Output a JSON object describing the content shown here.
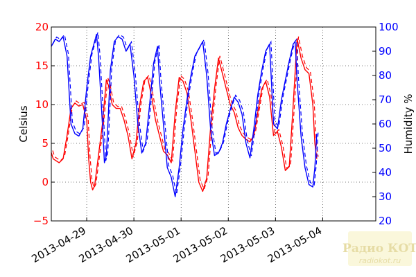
{
  "chart_data": {
    "type": "line",
    "x_start": "2013-04-28 06:00",
    "x_end": "2013-05-05 03:00",
    "xticks": [
      "2013-04-29",
      "2013-04-30",
      "2013-05-01",
      "2013-05-02",
      "2013-05-03",
      "2013-05-04"
    ],
    "ylabel_left": "Celsius",
    "ylabel_right": "Humidity %",
    "ylim_left": [
      -5,
      20
    ],
    "ylim_right": [
      20,
      100
    ],
    "yticks_left": [
      "−5",
      "0",
      "5",
      "10",
      "15",
      "20"
    ],
    "yticks_right": [
      "20",
      "30",
      "40",
      "50",
      "60",
      "70",
      "80",
      "90",
      "100"
    ],
    "grid": true,
    "series": [
      {
        "axis": "left",
        "color": "#ff0000",
        "points": [
          [
            "2013-04-28 06:00",
            3.8
          ],
          [
            "2013-04-28 07:00",
            3.0
          ],
          [
            "2013-04-28 10:00",
            2.5
          ],
          [
            "2013-04-28 12:00",
            3.0
          ],
          [
            "2013-04-28 14:00",
            6.0
          ],
          [
            "2013-04-28 16:00",
            9.5
          ],
          [
            "2013-04-28 18:00",
            10.2
          ],
          [
            "2013-04-28 20:00",
            9.8
          ],
          [
            "2013-04-28 22:00",
            10.0
          ],
          [
            "2013-04-29 00:00",
            8.0
          ],
          [
            "2013-04-29 01:00",
            3.0
          ],
          [
            "2013-04-29 02:00",
            0.0
          ],
          [
            "2013-04-29 03:00",
            -1.0
          ],
          [
            "2013-04-29 04:00",
            -0.5
          ],
          [
            "2013-04-29 06:00",
            3.5
          ],
          [
            "2013-04-29 08:00",
            7.5
          ],
          [
            "2013-04-29 10:00",
            13.2
          ],
          [
            "2013-04-29 11:00",
            12.5
          ],
          [
            "2013-04-29 13:00",
            10.0
          ],
          [
            "2013-04-29 15:00",
            9.5
          ],
          [
            "2013-04-29 17:00",
            9.5
          ],
          [
            "2013-04-29 19:00",
            8.0
          ],
          [
            "2013-04-29 21:00",
            6.0
          ],
          [
            "2013-04-29 23:00",
            3.0
          ],
          [
            "2013-04-30 01:00",
            5.0
          ],
          [
            "2013-04-30 03:00",
            10.0
          ],
          [
            "2013-04-30 05:00",
            13.0
          ],
          [
            "2013-04-30 07:00",
            13.5
          ],
          [
            "2013-04-30 09:00",
            11.0
          ],
          [
            "2013-04-30 11:00",
            8.0
          ],
          [
            "2013-04-30 13:00",
            6.0
          ],
          [
            "2013-04-30 15:00",
            4.0
          ],
          [
            "2013-04-30 17:00",
            3.5
          ],
          [
            "2013-04-30 19:00",
            2.5
          ],
          [
            "2013-04-30 21:00",
            9.0
          ],
          [
            "2013-04-30 23:00",
            13.5
          ],
          [
            "2013-05-01 01:00",
            13.0
          ],
          [
            "2013-05-01 03:00",
            11.5
          ],
          [
            "2013-05-01 05:00",
            8.0
          ],
          [
            "2013-05-01 07:00",
            4.0
          ],
          [
            "2013-05-01 09:00",
            0.0
          ],
          [
            "2013-05-01 11:00",
            -1.2
          ],
          [
            "2013-05-01 13:00",
            0.5
          ],
          [
            "2013-05-01 15:00",
            7.0
          ],
          [
            "2013-05-01 17:00",
            12.0
          ],
          [
            "2013-05-01 19:00",
            16.0
          ],
          [
            "2013-05-01 21:00",
            14.0
          ],
          [
            "2013-05-01 23:00",
            12.0
          ],
          [
            "2013-05-02 01:00",
            10.0
          ],
          [
            "2013-05-02 03:00",
            9.0
          ],
          [
            "2013-05-02 05:00",
            7.0
          ],
          [
            "2013-05-02 07:00",
            6.0
          ],
          [
            "2013-05-02 09:00",
            5.5
          ],
          [
            "2013-05-02 11:00",
            5.2
          ],
          [
            "2013-05-02 13:00",
            6.0
          ],
          [
            "2013-05-02 15:00",
            9.0
          ],
          [
            "2013-05-02 17:00",
            12.0
          ],
          [
            "2013-05-02 19:00",
            13.0
          ],
          [
            "2013-05-02 21:00",
            11.0
          ],
          [
            "2013-05-02 23:00",
            6.0
          ],
          [
            "2013-05-03 01:00",
            6.5
          ],
          [
            "2013-05-03 03:00",
            4.5
          ],
          [
            "2013-05-03 05:00",
            1.5
          ],
          [
            "2013-05-03 07:00",
            2.0
          ],
          [
            "2013-05-03 09:00",
            10.0
          ],
          [
            "2013-05-03 11:00",
            18.5
          ],
          [
            "2013-05-03 13:00",
            16.0
          ],
          [
            "2013-05-03 15:00",
            14.5
          ],
          [
            "2013-05-03 17:00",
            14.0
          ],
          [
            "2013-05-03 19:00",
            10.0
          ],
          [
            "2013-05-03 20:00",
            5.0
          ],
          [
            "2013-05-03 21:00",
            3.0
          ]
        ]
      },
      {
        "axis": "right",
        "color": "#0000ff",
        "points": [
          [
            "2013-04-28 06:00",
            92.0
          ],
          [
            "2013-04-28 08:00",
            95.0
          ],
          [
            "2013-04-28 10:00",
            94.0
          ],
          [
            "2013-04-28 12:00",
            96.0
          ],
          [
            "2013-04-28 14:00",
            88.0
          ],
          [
            "2013-04-28 16:00",
            60.0
          ],
          [
            "2013-04-28 18:00",
            56.0
          ],
          [
            "2013-04-28 20:00",
            55.0
          ],
          [
            "2013-04-28 22:00",
            58.0
          ],
          [
            "2013-04-29 00:00",
            75.0
          ],
          [
            "2013-04-29 02:00",
            88.0
          ],
          [
            "2013-04-29 04:00",
            94.0
          ],
          [
            "2013-04-29 05:00",
            97.0
          ],
          [
            "2013-04-29 06:00",
            88.0
          ],
          [
            "2013-04-29 08:00",
            60.0
          ],
          [
            "2013-04-29 09:00",
            44.0
          ],
          [
            "2013-04-29 10:00",
            47.0
          ],
          [
            "2013-04-29 11:00",
            64.0
          ],
          [
            "2013-04-29 12:00",
            82.0
          ],
          [
            "2013-04-29 14:00",
            94.0
          ],
          [
            "2013-04-29 16:00",
            96.0
          ],
          [
            "2013-04-29 18:00",
            95.0
          ],
          [
            "2013-04-29 20:00",
            90.0
          ],
          [
            "2013-04-29 22:00",
            93.0
          ],
          [
            "2013-04-30 00:00",
            80.0
          ],
          [
            "2013-04-30 02:00",
            60.0
          ],
          [
            "2013-04-30 04:00",
            48.0
          ],
          [
            "2013-04-30 06:00",
            52.0
          ],
          [
            "2013-04-30 08:00",
            68.0
          ],
          [
            "2013-04-30 10:00",
            85.0
          ],
          [
            "2013-04-30 12:00",
            92.0
          ],
          [
            "2013-04-30 13:00",
            78.0
          ],
          [
            "2013-04-30 15:00",
            60.0
          ],
          [
            "2013-04-30 17:00",
            42.0
          ],
          [
            "2013-04-30 19:00",
            38.0
          ],
          [
            "2013-04-30 21:00",
            30.0
          ],
          [
            "2013-04-30 23:00",
            42.0
          ],
          [
            "2013-05-01 01:00",
            58.0
          ],
          [
            "2013-05-01 03:00",
            70.0
          ],
          [
            "2013-05-01 05:00",
            80.0
          ],
          [
            "2013-05-01 07:00",
            88.0
          ],
          [
            "2013-05-01 09:00",
            91.0
          ],
          [
            "2013-05-01 11:00",
            94.0
          ],
          [
            "2013-05-01 13:00",
            80.0
          ],
          [
            "2013-05-01 15:00",
            58.0
          ],
          [
            "2013-05-01 17:00",
            47.0
          ],
          [
            "2013-05-01 19:00",
            48.0
          ],
          [
            "2013-05-01 21:00",
            52.0
          ],
          [
            "2013-05-01 23:00",
            60.0
          ],
          [
            "2013-05-02 01:00",
            66.0
          ],
          [
            "2013-05-02 03:00",
            71.0
          ],
          [
            "2013-05-02 05:00",
            69.0
          ],
          [
            "2013-05-02 07:00",
            64.0
          ],
          [
            "2013-05-02 09:00",
            52.0
          ],
          [
            "2013-05-02 11:00",
            46.0
          ],
          [
            "2013-05-02 13:00",
            58.0
          ],
          [
            "2013-05-02 15:00",
            72.0
          ],
          [
            "2013-05-02 17:00",
            82.0
          ],
          [
            "2013-05-02 19:00",
            90.0
          ],
          [
            "2013-05-02 21:00",
            93.0
          ],
          [
            "2013-05-02 23:00",
            60.0
          ],
          [
            "2013-05-03 01:00",
            58.0
          ],
          [
            "2013-05-03 03:00",
            70.0
          ],
          [
            "2013-05-03 05:00",
            78.0
          ],
          [
            "2013-05-03 07:00",
            86.0
          ],
          [
            "2013-05-03 09:00",
            93.0
          ],
          [
            "2013-05-03 10:00",
            94.0
          ],
          [
            "2013-05-03 11:00",
            78.0
          ],
          [
            "2013-05-03 13:00",
            55.0
          ],
          [
            "2013-05-03 15:00",
            42.0
          ],
          [
            "2013-05-03 17:00",
            35.0
          ],
          [
            "2013-05-03 19:00",
            34.0
          ],
          [
            "2013-05-03 20:00",
            42.0
          ],
          [
            "2013-05-03 21:00",
            56.0
          ]
        ]
      }
    ]
  },
  "watermark": {
    "line1": "Радио КОТ",
    "line2": "radiokot.ru"
  }
}
